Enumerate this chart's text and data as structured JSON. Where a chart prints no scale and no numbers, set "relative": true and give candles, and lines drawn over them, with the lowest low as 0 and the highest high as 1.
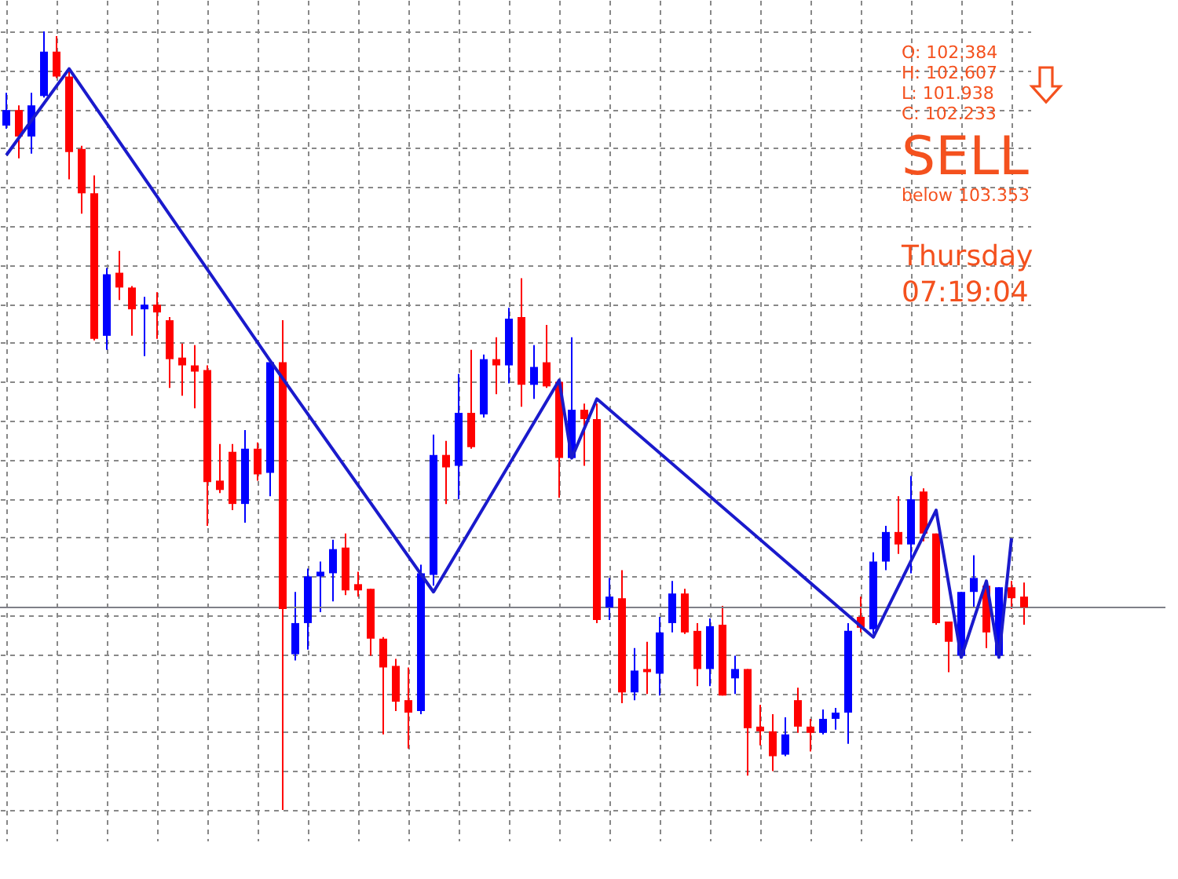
{
  "chart_data": {
    "type": "candlestick",
    "relative": true,
    "grid": true,
    "categories": [
      null,
      null,
      null,
      null,
      null,
      null,
      null,
      null,
      null,
      null,
      null,
      null,
      null,
      null,
      null,
      null,
      null,
      null,
      null,
      null,
      null,
      null,
      null,
      null,
      null,
      null,
      null,
      null,
      null,
      null,
      null,
      null,
      null,
      null,
      null,
      null,
      null,
      null,
      null,
      null,
      null,
      null,
      null,
      null,
      null,
      null,
      null,
      null,
      null,
      null,
      null,
      null,
      null,
      null,
      null,
      null,
      null,
      null,
      null,
      null,
      null,
      null,
      null,
      null,
      null,
      null,
      null,
      null,
      null,
      null,
      null,
      null,
      null,
      null,
      null,
      null,
      null,
      null,
      null,
      null,
      null,
      null
    ],
    "ohlc": [
      [
        0.879,
        0.921,
        0.875,
        0.899
      ],
      [
        0.899,
        0.905,
        0.837,
        0.865
      ],
      [
        0.865,
        0.921,
        0.843,
        0.905
      ],
      [
        0.917,
        1.0,
        0.915,
        0.974
      ],
      [
        0.974,
        0.994,
        0.94,
        0.942
      ],
      [
        0.942,
        0.95,
        0.81,
        0.845
      ],
      [
        0.849,
        0.853,
        0.766,
        0.792
      ],
      [
        0.792,
        0.815,
        0.603,
        0.605
      ],
      [
        0.609,
        0.696,
        0.591,
        0.688
      ],
      [
        0.69,
        0.718,
        0.655,
        0.671
      ],
      [
        0.671,
        0.673,
        0.609,
        0.643
      ],
      [
        0.643,
        0.659,
        0.583,
        0.649
      ],
      [
        0.649,
        0.665,
        0.605,
        0.639
      ],
      [
        0.629,
        0.633,
        0.542,
        0.579
      ],
      [
        0.581,
        0.599,
        0.532,
        0.571
      ],
      [
        0.571,
        0.597,
        0.516,
        0.563
      ],
      [
        0.565,
        0.571,
        0.365,
        0.421
      ],
      [
        0.423,
        0.47,
        0.407,
        0.411
      ],
      [
        0.46,
        0.47,
        0.385,
        0.393
      ],
      [
        0.393,
        0.488,
        0.369,
        0.464
      ],
      [
        0.464,
        0.472,
        0.423,
        0.431
      ],
      [
        0.433,
        0.575,
        0.403,
        0.575
      ],
      [
        0.575,
        0.629,
        0.0,
        0.258
      ],
      [
        0.2,
        0.28,
        0.192,
        0.24
      ],
      [
        0.24,
        0.31,
        0.206,
        0.3
      ],
      [
        0.3,
        0.319,
        0.254,
        0.306
      ],
      [
        0.304,
        0.347,
        0.268,
        0.335
      ],
      [
        0.337,
        0.355,
        0.276,
        0.282
      ],
      [
        0.29,
        0.306,
        0.274,
        0.282
      ],
      [
        0.284,
        0.284,
        0.198,
        0.22
      ],
      [
        0.22,
        0.222,
        0.097,
        0.183
      ],
      [
        0.185,
        0.194,
        0.127,
        0.139
      ],
      [
        0.141,
        0.183,
        0.079,
        0.125
      ],
      [
        0.127,
        0.315,
        0.123,
        0.304
      ],
      [
        0.302,
        0.482,
        0.288,
        0.456
      ],
      [
        0.456,
        0.474,
        0.393,
        0.44
      ],
      [
        0.442,
        0.56,
        0.399,
        0.51
      ],
      [
        0.51,
        0.591,
        0.464,
        0.466
      ],
      [
        0.508,
        0.585,
        0.504,
        0.579
      ],
      [
        0.579,
        0.607,
        0.534,
        0.571
      ],
      [
        0.571,
        0.645,
        0.548,
        0.631
      ],
      [
        0.633,
        0.683,
        0.518,
        0.546
      ],
      [
        0.546,
        0.597,
        0.528,
        0.569
      ],
      [
        0.575,
        0.623,
        0.542,
        0.544
      ],
      [
        0.55,
        0.552,
        0.401,
        0.452
      ],
      [
        0.452,
        0.607,
        0.452,
        0.514
      ],
      [
        0.514,
        0.522,
        0.442,
        0.502
      ],
      [
        0.502,
        0.522,
        0.24,
        0.244
      ],
      [
        0.26,
        0.298,
        0.244,
        0.274
      ],
      [
        0.272,
        0.308,
        0.137,
        0.151
      ],
      [
        0.151,
        0.208,
        0.141,
        0.179
      ],
      [
        0.181,
        0.216,
        0.149,
        0.177
      ],
      [
        0.175,
        0.248,
        0.147,
        0.228
      ],
      [
        0.24,
        0.294,
        0.228,
        0.278
      ],
      [
        0.278,
        0.284,
        0.226,
        0.228
      ],
      [
        0.23,
        0.24,
        0.159,
        0.181
      ],
      [
        0.181,
        0.246,
        0.159,
        0.236
      ],
      [
        0.238,
        0.262,
        0.147,
        0.147
      ],
      [
        0.169,
        0.198,
        0.149,
        0.181
      ],
      [
        0.181,
        0.181,
        0.044,
        0.105
      ],
      [
        0.107,
        0.135,
        0.083,
        0.101
      ],
      [
        0.101,
        0.123,
        0.05,
        0.069
      ],
      [
        0.071,
        0.119,
        0.069,
        0.097
      ],
      [
        0.141,
        0.157,
        0.099,
        0.107
      ],
      [
        0.107,
        0.117,
        0.075,
        0.099
      ],
      [
        0.099,
        0.129,
        0.097,
        0.117
      ],
      [
        0.117,
        0.131,
        0.103,
        0.125
      ],
      [
        0.125,
        0.24,
        0.085,
        0.23
      ],
      [
        0.248,
        0.274,
        0.228,
        0.234
      ],
      [
        0.232,
        0.331,
        0.226,
        0.319
      ],
      [
        0.319,
        0.365,
        0.308,
        0.357
      ],
      [
        0.357,
        0.403,
        0.329,
        0.341
      ],
      [
        0.341,
        0.429,
        0.304,
        0.399
      ],
      [
        0.409,
        0.413,
        0.345,
        0.355
      ],
      [
        0.355,
        0.355,
        0.238,
        0.24
      ],
      [
        0.242,
        0.242,
        0.177,
        0.216
      ],
      [
        0.198,
        0.28,
        0.196,
        0.28
      ],
      [
        0.28,
        0.327,
        0.26,
        0.298
      ],
      [
        0.288,
        0.288,
        0.208,
        0.228
      ],
      [
        0.198,
        0.286,
        0.196,
        0.286
      ],
      [
        0.286,
        0.294,
        0.258,
        0.272
      ],
      [
        0.274,
        0.292,
        0.238,
        0.26
      ]
    ],
    "colors": [
      "#0000ff",
      "#ff0000",
      "#0000ff",
      "#0000ff",
      "#ff0000",
      "#ff0000",
      "#ff0000",
      "#ff0000",
      "#0000ff",
      "#ff0000",
      "#ff0000",
      "#0000ff",
      "#ff0000",
      "#ff0000",
      "#ff0000",
      "#ff0000",
      "#ff0000",
      "#ff0000",
      "#ff0000",
      "#0000ff",
      "#ff0000",
      "#0000ff",
      "#ff0000",
      "#0000ff",
      "#0000ff",
      "#0000ff",
      "#0000ff",
      "#ff0000",
      "#ff0000",
      "#ff0000",
      "#ff0000",
      "#ff0000",
      "#ff0000",
      "#0000ff",
      "#0000ff",
      "#ff0000",
      "#0000ff",
      "#ff0000",
      "#0000ff",
      "#ff0000",
      "#0000ff",
      "#ff0000",
      "#0000ff",
      "#ff0000",
      "#ff0000",
      "#0000ff",
      "#ff0000",
      "#ff0000",
      "#0000ff",
      "#ff0000",
      "#0000ff",
      "#ff0000",
      "#0000ff",
      "#0000ff",
      "#ff0000",
      "#ff0000",
      "#0000ff",
      "#ff0000",
      "#0000ff",
      "#ff0000",
      "#ff0000",
      "#ff0000",
      "#0000ff",
      "#ff0000",
      "#ff0000",
      "#0000ff",
      "#0000ff",
      "#0000ff",
      "#ff0000",
      "#0000ff",
      "#0000ff",
      "#ff0000",
      "#0000ff",
      "#ff0000",
      "#ff0000",
      "#ff0000",
      "#0000ff",
      "#0000ff",
      "#ff0000",
      "#0000ff",
      "#ff0000",
      "#ff0000"
    ],
    "series": [
      {
        "type": "line",
        "color": "#1a1acc",
        "values": [
          0.841,
          null,
          null,
          null,
          null,
          0.952,
          null,
          null,
          null,
          null,
          null,
          null,
          null,
          null,
          null,
          null,
          null,
          null,
          null,
          null,
          null,
          0.577,
          null,
          null,
          null,
          null,
          null,
          null,
          null,
          null,
          null,
          null,
          null,
          null,
          0.28,
          null,
          null,
          null,
          null,
          null,
          null,
          null,
          null,
          null,
          0.552,
          0.452,
          null,
          0.528,
          null,
          null,
          null,
          null,
          null,
          null,
          null,
          null,
          null,
          null,
          null,
          null,
          null,
          null,
          null,
          null,
          null,
          null,
          null,
          null,
          null,
          0.222,
          null,
          null,
          null,
          null,
          0.385,
          null,
          0.196,
          null,
          0.294,
          0.196,
          0.349,
          null
        ]
      }
    ],
    "ref_lines": [
      {
        "axis": "y",
        "value": 0.26,
        "color": "#7f8088"
      }
    ],
    "annotations": [
      "O: 102.384",
      "H: 102.607",
      "L: 101.938",
      "C: 102.233",
      "SELL",
      "below 103.353",
      "Thursday",
      "07:19:04"
    ]
  }
}
